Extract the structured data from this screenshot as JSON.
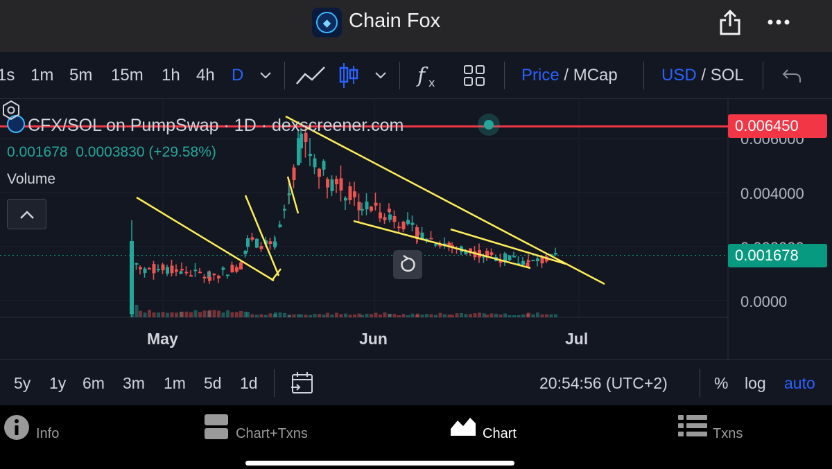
{
  "header": {
    "title": "Chain Fox",
    "icons": [
      "app-logo",
      "share-icon",
      "more-icon"
    ]
  },
  "toolbar": {
    "intervals": [
      "1s",
      "1m",
      "5m",
      "15m",
      "1h",
      "4h",
      "D"
    ],
    "active_interval": "D",
    "price_label": "Price",
    "mcap_label": "MCap",
    "usd_label": "USD",
    "sol_label": "SOL",
    "separator": "/"
  },
  "chart": {
    "legend": {
      "title": "CFX/SOL on PumpSwap · 1D · dexscreener.com",
      "price": "0.001678",
      "change": "0.0003830",
      "change_pct": "(+29.58%)",
      "volume": "Volume"
    },
    "price_tags": {
      "high": "0.006450",
      "last": "0.001678"
    },
    "y_axis_labels": [
      "0.006000",
      "0.004000",
      "0.002000",
      "0.0000"
    ],
    "x_axis_labels": [
      "May",
      "Jun",
      "Jul"
    ],
    "colors": {
      "up": "#26a69a",
      "down": "#ef5350",
      "trendline": "#ffee58",
      "tag_red": "#f23645",
      "tag_green": "#089981"
    }
  },
  "chart_data": {
    "type": "candlestick",
    "title": "CFX/SOL on PumpSwap · 1D · dexscreener.com",
    "x_labels": [
      "May",
      "Jun",
      "Jul"
    ],
    "y_range": [
      0,
      0.0068
    ],
    "high_line": 0.00645,
    "last_price": 0.001678
  },
  "rangebar": {
    "ranges": [
      "5y",
      "1y",
      "6m",
      "3m",
      "1m",
      "5d",
      "1d"
    ],
    "time": "20:54:56 (UTC+2)",
    "percent": "%",
    "log": "log",
    "auto": "auto"
  },
  "tabs": [
    {
      "label": "Info"
    },
    {
      "label": "Chart+Txns"
    },
    {
      "label": "Chart"
    },
    {
      "label": "Txns"
    }
  ]
}
